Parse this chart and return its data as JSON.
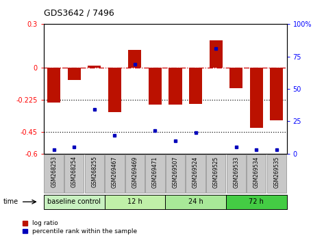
{
  "title": "GDS3642 / 7496",
  "samples": [
    "GSM268253",
    "GSM268254",
    "GSM268255",
    "GSM269467",
    "GSM269469",
    "GSM269471",
    "GSM269507",
    "GSM269524",
    "GSM269525",
    "GSM269533",
    "GSM269534",
    "GSM269535"
  ],
  "log_ratio": [
    -0.245,
    -0.09,
    0.01,
    -0.31,
    0.12,
    -0.26,
    -0.26,
    -0.255,
    0.19,
    -0.145,
    -0.42,
    -0.37
  ],
  "percentile_rank": [
    3,
    5,
    34,
    14,
    69,
    18,
    10,
    16,
    81,
    5,
    3,
    3
  ],
  "group_defs": [
    {
      "label": "baseline control",
      "start": 0,
      "end": 3,
      "color": "#c8f0c0"
    },
    {
      "label": "12 h",
      "start": 3,
      "end": 6,
      "color": "#c0f0a8"
    },
    {
      "label": "24 h",
      "start": 6,
      "end": 9,
      "color": "#a8e898"
    },
    {
      "label": "72 h",
      "start": 9,
      "end": 12,
      "color": "#44cc44"
    }
  ],
  "ylim_left": [
    -0.6,
    0.3
  ],
  "ylim_right": [
    0,
    100
  ],
  "yticks_left": [
    0.3,
    0.0,
    -0.225,
    -0.45,
    -0.6
  ],
  "ytick_labels_left": [
    "0.3",
    "0",
    "-0.225",
    "-0.45",
    "-0.6"
  ],
  "yticks_right": [
    100,
    75,
    50,
    25,
    0
  ],
  "bar_color": "#bb1100",
  "dot_color": "#0000bb",
  "hline0_color": "#cc0000",
  "hline_dot_color": "#111111",
  "box_gray": "#c8c8c8",
  "box_edge": "#888888"
}
